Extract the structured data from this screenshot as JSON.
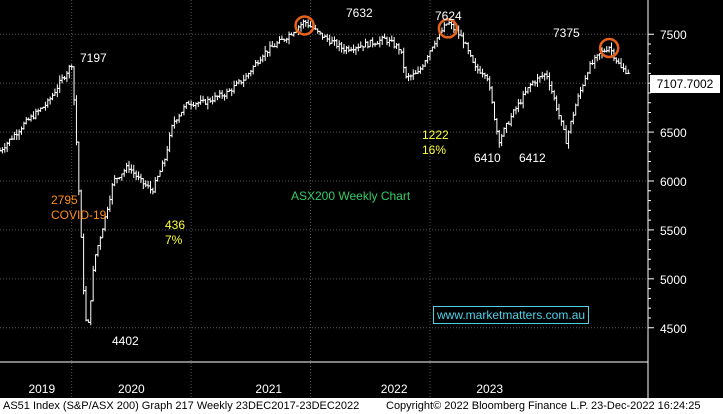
{
  "chart_data": {
    "type": "ohlc",
    "title": "ASX200 Weekly Chart",
    "ylim": [
      4150,
      7850
    ],
    "y_ticks": [
      4500,
      5000,
      5500,
      6000,
      6500,
      7000,
      7500
    ],
    "x_labels": [
      {
        "label": "2019",
        "t": 0.5
      },
      {
        "label": "2020",
        "t": 2.0
      },
      {
        "label": "2021",
        "t": 4.3
      },
      {
        "label": "2022",
        "t": 6.4
      },
      {
        "label": "2023",
        "t": 8.0
      }
    ],
    "x_year_breaks": [
      1.0,
      3.0,
      5.0,
      7.0
    ],
    "grid": true,
    "last_price": "7107.7002",
    "series": [
      {
        "t": -0.2,
        "v": 6310
      },
      {
        "t": 0.2,
        "v": 6580
      },
      {
        "t": 0.6,
        "v": 6800
      },
      {
        "t": 0.85,
        "v": 7050
      },
      {
        "t": 1.0,
        "v": 7197
      },
      {
        "t": 1.06,
        "v": 6650
      },
      {
        "t": 1.2,
        "v": 4900
      },
      {
        "t": 1.26,
        "v": 4402
      },
      {
        "t": 1.38,
        "v": 5200
      },
      {
        "t": 1.55,
        "v": 5600
      },
      {
        "t": 1.7,
        "v": 6000
      },
      {
        "t": 1.95,
        "v": 6150
      },
      {
        "t": 2.15,
        "v": 6000
      },
      {
        "t": 2.35,
        "v": 5900
      },
      {
        "t": 2.55,
        "v": 6200
      },
      {
        "t": 2.7,
        "v": 6600
      },
      {
        "t": 2.95,
        "v": 6800
      },
      {
        "t": 3.2,
        "v": 6800
      },
      {
        "t": 3.6,
        "v": 6900
      },
      {
        "t": 3.9,
        "v": 7050
      },
      {
        "t": 4.2,
        "v": 7300
      },
      {
        "t": 4.55,
        "v": 7450
      },
      {
        "t": 4.9,
        "v": 7632
      },
      {
        "t": 5.15,
        "v": 7500
      },
      {
        "t": 5.55,
        "v": 7350
      },
      {
        "t": 5.95,
        "v": 7400
      },
      {
        "t": 6.25,
        "v": 7450
      },
      {
        "t": 6.5,
        "v": 7350
      },
      {
        "t": 6.6,
        "v": 7050
      },
      {
        "t": 6.8,
        "v": 7100
      },
      {
        "t": 7.05,
        "v": 7400
      },
      {
        "t": 7.3,
        "v": 7624
      },
      {
        "t": 7.55,
        "v": 7450
      },
      {
        "t": 7.75,
        "v": 7150
      },
      {
        "t": 7.95,
        "v": 7100
      },
      {
        "t": 8.15,
        "v": 6410
      },
      {
        "t": 8.4,
        "v": 6700
      },
      {
        "t": 8.7,
        "v": 7000
      },
      {
        "t": 8.95,
        "v": 7100
      },
      {
        "t": 9.1,
        "v": 6800
      },
      {
        "t": 9.28,
        "v": 6412
      },
      {
        "t": 9.45,
        "v": 6800
      },
      {
        "t": 9.65,
        "v": 7150
      },
      {
        "t": 9.85,
        "v": 7300
      },
      {
        "t": 10.0,
        "v": 7375
      },
      {
        "t": 10.2,
        "v": 7150
      },
      {
        "t": 10.35,
        "v": 7107.7
      }
    ],
    "highlighted_points": [
      {
        "t": 4.9,
        "v": 7590
      },
      {
        "t": 7.3,
        "v": 7560
      },
      {
        "t": 10.0,
        "v": 7360
      }
    ],
    "annotations": [
      {
        "text": "7197",
        "color": "#ffffff"
      },
      {
        "text": "7632",
        "color": "#ffffff"
      },
      {
        "text": "7624",
        "color": "#ffffff"
      },
      {
        "text": "7375",
        "color": "#ffffff"
      },
      {
        "text": "4402",
        "color": "#ffffff"
      },
      {
        "text": "6410",
        "color": "#ffffff"
      },
      {
        "text": "6412",
        "color": "#ffffff"
      },
      {
        "text": "2795",
        "color": "#ff8c1a"
      },
      {
        "text": "COVID-19",
        "color": "#ff8c1a"
      },
      {
        "text": "436",
        "color": "#ffff33"
      },
      {
        "text": "7%",
        "color": "#ffff33"
      },
      {
        "text": "1222",
        "color": "#ffff33"
      },
      {
        "text": "16%",
        "color": "#ffff33"
      }
    ]
  },
  "chart_title": "ASX200 Weekly Chart",
  "watermark": "www.marketmatters.com.au",
  "footer": {
    "left": "AS51 Index (S&P/ASX 200) Graph 217  Weekly 23DEC2017-23DEC2022",
    "middle": "Copyright© 2022 Bloomberg Finance L.P.",
    "right": "23-Dec-2022 16:24:25"
  },
  "colors": {
    "background": "#000000",
    "bars": "#ffffff",
    "grid": "#555555",
    "title": "#33cc66",
    "orange": "#ff8c1a",
    "yellow": "#ffff33",
    "circle": "#e8621a",
    "watermark": "#4fd1e8"
  }
}
